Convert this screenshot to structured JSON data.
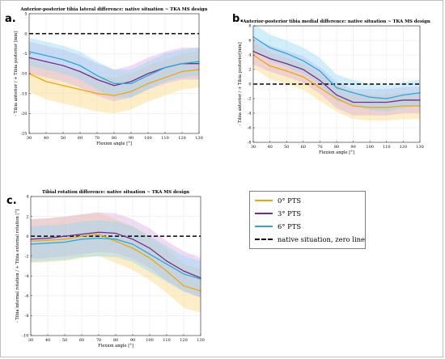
{
  "legend": [
    {
      "label": "0° PTS",
      "color": "#f0a800",
      "dashed": false
    },
    {
      "label": "3° PTS",
      "color": "#7b2a8e",
      "dashed": false
    },
    {
      "label": "6° PTS",
      "color": "#2aa9d8",
      "dashed": false
    },
    {
      "label": "native situation, zero line",
      "color": "#000000",
      "dashed": true
    }
  ],
  "colors": {
    "pts0": "#f0a800",
    "pts3": "#7b2a8e",
    "pts6": "#2aa9d8",
    "band0": "#fbd67a",
    "band3": "#d9a9e0",
    "band6": "#8fd8f5"
  },
  "chart_data": [
    {
      "type": "line",
      "panel": "a.",
      "title": "Anterior-posterior tibia lateral difference: native situation ~ TKA MS design",
      "xlabel": "Flexion angle [°]",
      "ylabel": "- Tibia anterior / + Tibia posterior [mm]",
      "xlim": [
        30,
        130
      ],
      "ylim": [
        -25,
        5
      ],
      "grid": true,
      "xticks": [
        30,
        40,
        50,
        60,
        70,
        80,
        90,
        100,
        110,
        120,
        130
      ],
      "yticks": [
        -25,
        -20,
        -15,
        -10,
        -5,
        0,
        5
      ],
      "x": [
        30,
        40,
        50,
        60,
        70,
        80,
        90,
        100,
        110,
        120,
        130
      ],
      "series": [
        {
          "name": "0° PTS",
          "values": [
            -10,
            -12,
            -13,
            -14,
            -15,
            -15.5,
            -14.5,
            -12.5,
            -11,
            -9.5,
            -9
          ],
          "sd": 4.5
        },
        {
          "name": "3° PTS",
          "values": [
            -6,
            -7,
            -8,
            -9.5,
            -11.5,
            -13,
            -12,
            -10,
            -8.5,
            -7.5,
            -7.5
          ],
          "sd": 4
        },
        {
          "name": "6° PTS",
          "values": [
            -4.5,
            -5.5,
            -6.5,
            -8,
            -10.5,
            -12.5,
            -12.5,
            -10.5,
            -8.5,
            -7.5,
            -7
          ],
          "sd": 3.5
        }
      ],
      "zero_line": 0
    },
    {
      "type": "line",
      "panel": "b.",
      "title": "Anterior-posterior tibia medial difference: native situation ~ TKA MS design",
      "xlabel": "Flexion angle [°]",
      "ylabel": "- Tibia anterior / + Tibia posterior[mm]",
      "xlim": [
        30,
        130
      ],
      "ylim": [
        -8,
        8
      ],
      "grid": true,
      "xticks": [
        30,
        40,
        50,
        60,
        70,
        80,
        90,
        100,
        110,
        120,
        130
      ],
      "yticks": [
        -8,
        -6,
        -4,
        -2,
        0,
        2,
        4,
        6,
        8
      ],
      "x": [
        30,
        40,
        50,
        60,
        70,
        80,
        90,
        100,
        110,
        120,
        130
      ],
      "series": [
        {
          "name": "0° PTS",
          "values": [
            4,
            2.5,
            1.8,
            1,
            -0.5,
            -2,
            -3,
            -3.2,
            -3.2,
            -3,
            -3
          ],
          "sd": 1.8
        },
        {
          "name": "3° PTS",
          "values": [
            4.5,
            3.5,
            2.8,
            2,
            0.5,
            -1.5,
            -2.5,
            -2.5,
            -2.5,
            -2.2,
            -2.2
          ],
          "sd": 1.8
        },
        {
          "name": "6° PTS",
          "values": [
            6.5,
            5,
            4.2,
            3.2,
            1.8,
            -0.5,
            -1.2,
            -1.8,
            -2,
            -1.5,
            -1.2
          ],
          "sd": 1.8
        }
      ],
      "zero_line": 0
    },
    {
      "type": "line",
      "panel": "c.",
      "title": "Tibial rotation difference: native situation ~ TKA MS design",
      "xlabel": "Flexion angle [°]",
      "ylabel": "- Tibia internal rotation / + Tibia external rotation [°]",
      "xlim": [
        30,
        130
      ],
      "ylim": [
        -10,
        4
      ],
      "grid": true,
      "xticks": [
        30,
        40,
        50,
        60,
        70,
        80,
        90,
        100,
        110,
        120,
        130
      ],
      "yticks": [
        -10,
        -8,
        -6,
        -4,
        -2,
        0,
        2,
        4
      ],
      "x": [
        30,
        40,
        50,
        60,
        70,
        80,
        90,
        100,
        110,
        120,
        130
      ],
      "series": [
        {
          "name": "0° PTS",
          "values": [
            -0.5,
            -0.4,
            -0.3,
            0,
            0.2,
            -0.5,
            -1.2,
            -2.2,
            -3.5,
            -5,
            -5.5
          ],
          "sd": 2.2
        },
        {
          "name": "3° PTS",
          "values": [
            -0.3,
            -0.2,
            0,
            0.2,
            0.4,
            0.3,
            -0.3,
            -1.2,
            -2.5,
            -3.5,
            -4.2
          ],
          "sd": 2.0
        },
        {
          "name": "6° PTS",
          "values": [
            -0.8,
            -0.7,
            -0.6,
            -0.3,
            -0.2,
            -0.3,
            -0.8,
            -1.8,
            -2.8,
            -3.8,
            -4.3
          ],
          "sd": 1.8
        }
      ],
      "zero_line": 0
    }
  ]
}
